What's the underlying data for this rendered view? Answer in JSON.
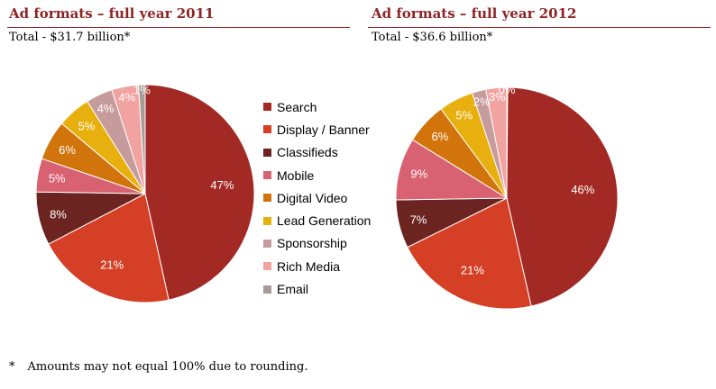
{
  "chart_data": [
    {
      "type": "pie",
      "title": "Ad formats – full year 2011",
      "subtitle": "Total - $31.7 billion*",
      "categories": [
        "Search",
        "Display / Banner",
        "Classifieds",
        "Mobile",
        "Digital Video",
        "Lead Generation",
        "Sponsorship",
        "Rich Media",
        "Email"
      ],
      "values": [
        47,
        21,
        8,
        5,
        6,
        5,
        4,
        4,
        1
      ],
      "labels": [
        "47%",
        "21%",
        "8%",
        "5%",
        "6%",
        "5%",
        "4%",
        "4%",
        "1%"
      ]
    },
    {
      "type": "pie",
      "title": "Ad formats – full year 2012",
      "subtitle": "Total - $36.6 billion*",
      "categories": [
        "Search",
        "Display / Banner",
        "Classifieds",
        "Mobile",
        "Digital Video",
        "Lead Generation",
        "Sponsorship",
        "Rich Media",
        "Email"
      ],
      "values": [
        46,
        21,
        7,
        9,
        6,
        5,
        2,
        3,
        0
      ],
      "labels": [
        "46%",
        "21%",
        "7%",
        "9%",
        "6%",
        "5%",
        "2%",
        "3%",
        "0%"
      ]
    }
  ],
  "legend": {
    "items": [
      "Search",
      "Display / Banner",
      "Classifieds",
      "Mobile",
      "Digital Video",
      "Lead Generation",
      "Sponsorship",
      "Rich Media",
      "Email"
    ],
    "colors": [
      "#a32a24",
      "#d43f26",
      "#6b2420",
      "#d86271",
      "#d2740c",
      "#e8b00e",
      "#c69b9c",
      "#f0a3a0",
      "#a89c98"
    ]
  },
  "footnote": {
    "star": "*",
    "text": "Amounts may not equal 100% due to rounding."
  }
}
